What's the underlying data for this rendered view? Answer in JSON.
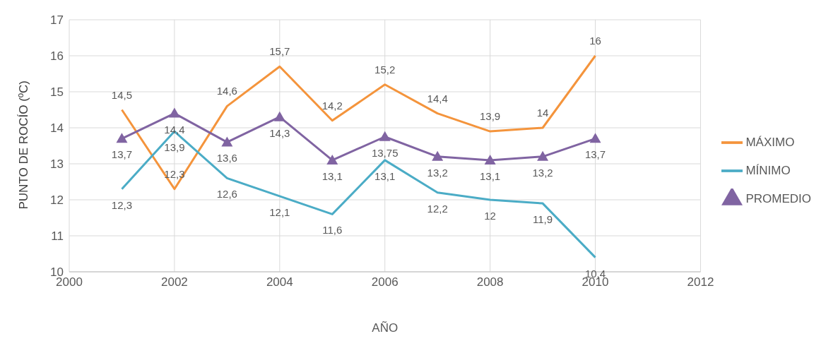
{
  "chart_data": {
    "type": "line",
    "xlabel": "AÑO",
    "ylabel": "PUNTO DE ROCÍO (ºC)",
    "x": [
      2001,
      2002,
      2003,
      2004,
      2005,
      2006,
      2007,
      2008,
      2009,
      2010
    ],
    "xlim": [
      2000,
      2012
    ],
    "xticks": [
      2000,
      2002,
      2004,
      2006,
      2008,
      2010,
      2012
    ],
    "ylim": [
      10,
      17
    ],
    "yticks": [
      10,
      11,
      12,
      13,
      14,
      15,
      16,
      17
    ],
    "grid": true,
    "legend": "right",
    "series": [
      {
        "name": "MÁXIMO",
        "color": "#f4943c",
        "marker": "none",
        "values": [
          14.5,
          12.3,
          14.6,
          15.7,
          14.2,
          15.2,
          14.4,
          13.9,
          14,
          16
        ],
        "value_labels": [
          "14,5",
          "12,3",
          "14,6",
          "15,7",
          "14,2",
          "15,2",
          "14,4",
          "13,9",
          "14",
          "16"
        ]
      },
      {
        "name": "MÍNIMO",
        "color": "#4bacc6",
        "marker": "none",
        "values": [
          12.3,
          13.9,
          12.6,
          12.1,
          11.6,
          13.1,
          12.2,
          12,
          11.9,
          10.4
        ],
        "value_labels": [
          "12,3",
          "13,9",
          "12,6",
          "12,1",
          "11,6",
          "13,1",
          "12,2",
          "12",
          "11,9",
          "10,4"
        ]
      },
      {
        "name": "PROMEDIO",
        "color": "#8064a2",
        "marker": "triangle",
        "values": [
          13.7,
          14.4,
          13.6,
          14.3,
          13.1,
          13.75,
          13.2,
          13.1,
          13.2,
          13.7
        ],
        "value_labels": [
          "13,7",
          "14,4",
          "13,6",
          "14,3",
          "13,1",
          "13,75",
          "13,2",
          "13,1",
          "13,2",
          "13,7"
        ]
      }
    ]
  }
}
